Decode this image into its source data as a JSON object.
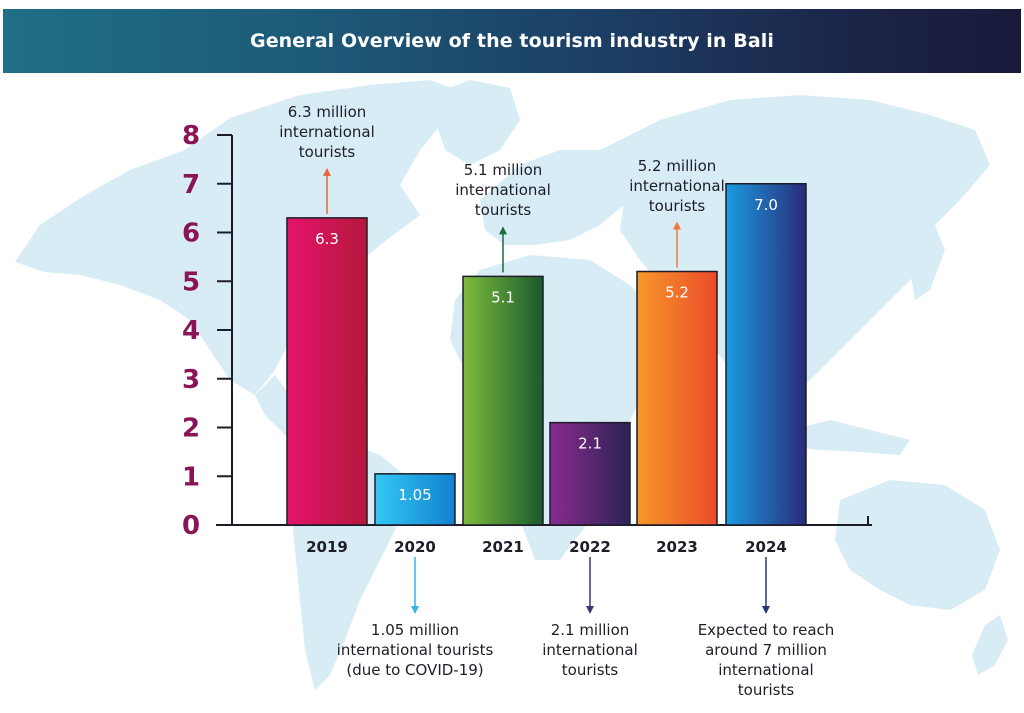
{
  "header": {
    "title": "General Overview of the tourism industry in Bali"
  },
  "colors": {
    "map": "#d7ecf4",
    "axis": "#1d1d28",
    "tick_label": "#8a1456",
    "year_label": "#1d1d28"
  },
  "chart_data": {
    "type": "bar",
    "title": "General Overview of the tourism industry in Bali",
    "xlabel": "",
    "ylabel": "",
    "ylim": [
      0,
      8
    ],
    "yticks": [
      "0",
      "1",
      "2",
      "3",
      "4",
      "5",
      "6",
      "7",
      "8"
    ],
    "categories": [
      "2019",
      "2020",
      "2021",
      "2022",
      "2023",
      "2024"
    ],
    "values": [
      6.3,
      1.05,
      5.1,
      2.1,
      5.2,
      7.0
    ],
    "value_labels": [
      "6.3",
      "1.05",
      "5.1",
      "2.1",
      "5.2",
      "7.0"
    ],
    "bar_colors": [
      [
        "#e6136d",
        "#b4183a"
      ],
      [
        "#32c9f2",
        "#1280cf"
      ],
      [
        "#7dbb3c",
        "#1a5a2e"
      ],
      [
        "#8a2b8f",
        "#2b2254"
      ],
      [
        "#f7982a",
        "#ea4b2a"
      ],
      [
        "#1a9be0",
        "#2a2b78"
      ]
    ],
    "annotations": [
      {
        "category": "2019",
        "position": "above",
        "lines": [
          "6.3 million",
          "international",
          "tourists"
        ],
        "arrow_color": "#e9663a"
      },
      {
        "category": "2020",
        "position": "below",
        "lines": [
          "1.05 million",
          "international tourists",
          "(due to COVID-19)"
        ],
        "arrow_color": "#33b5e5"
      },
      {
        "category": "2021",
        "position": "above",
        "lines": [
          "5.1 million",
          "international",
          "tourists"
        ],
        "arrow_color": "#1a6d3c"
      },
      {
        "category": "2022",
        "position": "below",
        "lines": [
          "2.1 million",
          "international",
          "tourists"
        ],
        "arrow_color": "#3a3478"
      },
      {
        "category": "2023",
        "position": "above",
        "lines": [
          "5.2 million",
          "international",
          "tourists"
        ],
        "arrow_color": "#f07840"
      },
      {
        "category": "2024",
        "position": "below",
        "lines": [
          "Expected to reach",
          "around 7 million",
          "international",
          "tourists"
        ],
        "arrow_color": "#2a3478"
      }
    ]
  }
}
